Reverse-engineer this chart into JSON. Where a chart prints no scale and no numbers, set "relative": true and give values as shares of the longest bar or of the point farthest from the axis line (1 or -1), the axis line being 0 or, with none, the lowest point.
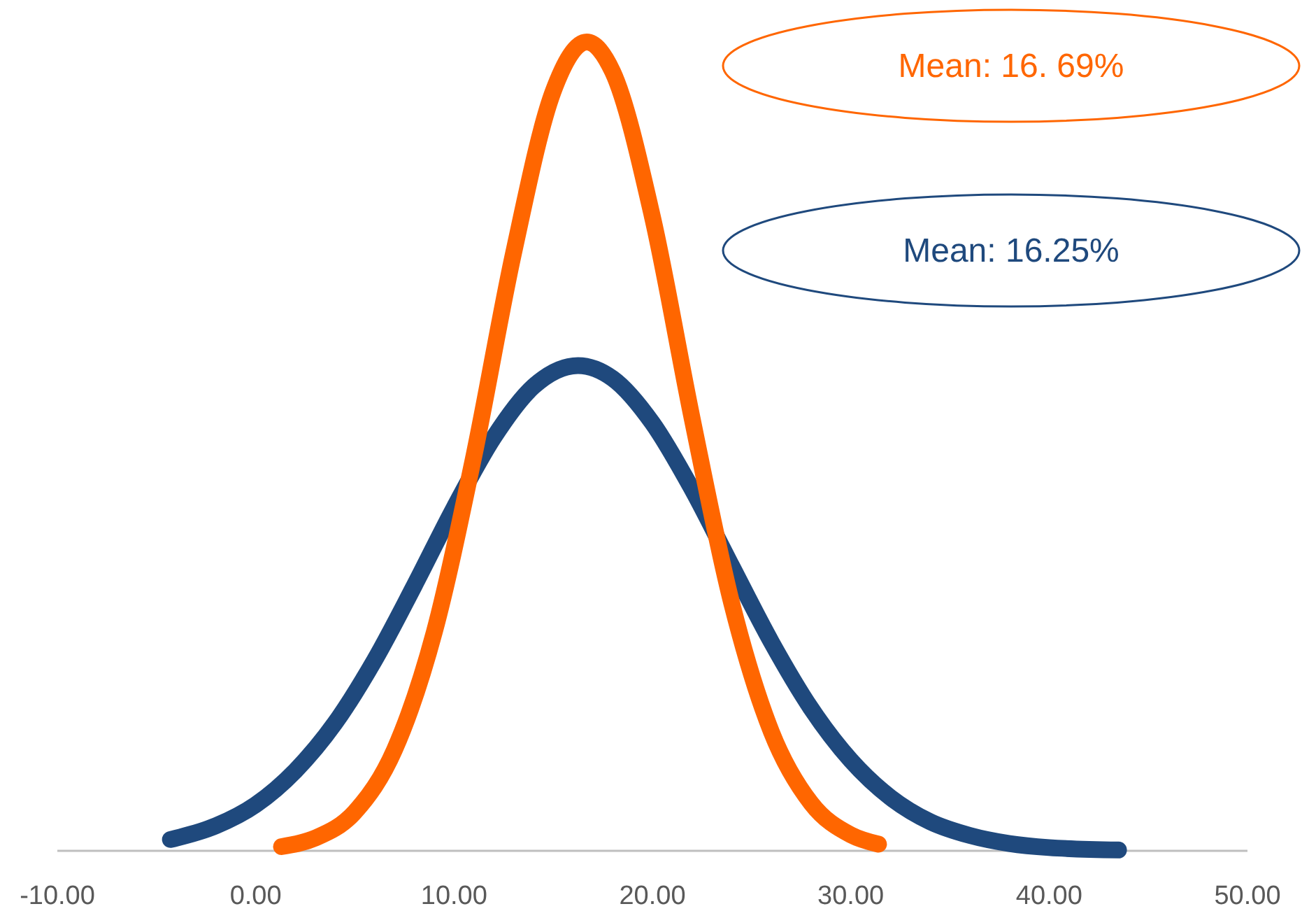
{
  "chart_data": {
    "type": "line",
    "relative": true,
    "grid": false,
    "marker": "none",
    "line_style": "solid",
    "xlim": [
      -10,
      50
    ],
    "xticks": [
      {
        "value": -10,
        "label": "-10.00"
      },
      {
        "value": 0,
        "label": "0.00"
      },
      {
        "value": 10,
        "label": "10.00"
      },
      {
        "value": 20,
        "label": "20.00"
      },
      {
        "value": 30,
        "label": "30.00"
      },
      {
        "value": 40,
        "label": "40.00"
      },
      {
        "value": 50,
        "label": "50.00"
      }
    ],
    "series": [
      {
        "color": "#1f497d",
        "x": [
          -4.3,
          -2,
          0,
          2,
          4,
          6,
          8,
          10,
          12,
          14,
          16.25,
          18,
          20,
          22,
          24,
          26,
          28,
          30,
          32,
          34,
          36,
          38,
          40,
          43.5
        ],
        "values": [
          0.014,
          0.031,
          0.057,
          0.099,
          0.158,
          0.236,
          0.328,
          0.424,
          0.511,
          0.574,
          0.6,
          0.584,
          0.529,
          0.447,
          0.352,
          0.258,
          0.176,
          0.112,
          0.066,
          0.036,
          0.019,
          0.009,
          0.004,
          0.001
        ]
      },
      {
        "color": "#ff6600",
        "x": [
          1.3,
          3,
          5,
          7,
          9,
          11,
          13,
          15,
          16.69,
          18,
          20,
          22,
          24,
          26,
          28,
          30,
          31.4
        ],
        "values": [
          0.0052,
          0.0157,
          0.048,
          0.125,
          0.27,
          0.488,
          0.739,
          0.939,
          1,
          0.963,
          0.784,
          0.535,
          0.306,
          0.147,
          0.059,
          0.0198,
          0.0082
        ]
      }
    ],
    "annotations": [
      "Mean: 16.25%",
      "Mean: 16. 69%"
    ]
  }
}
